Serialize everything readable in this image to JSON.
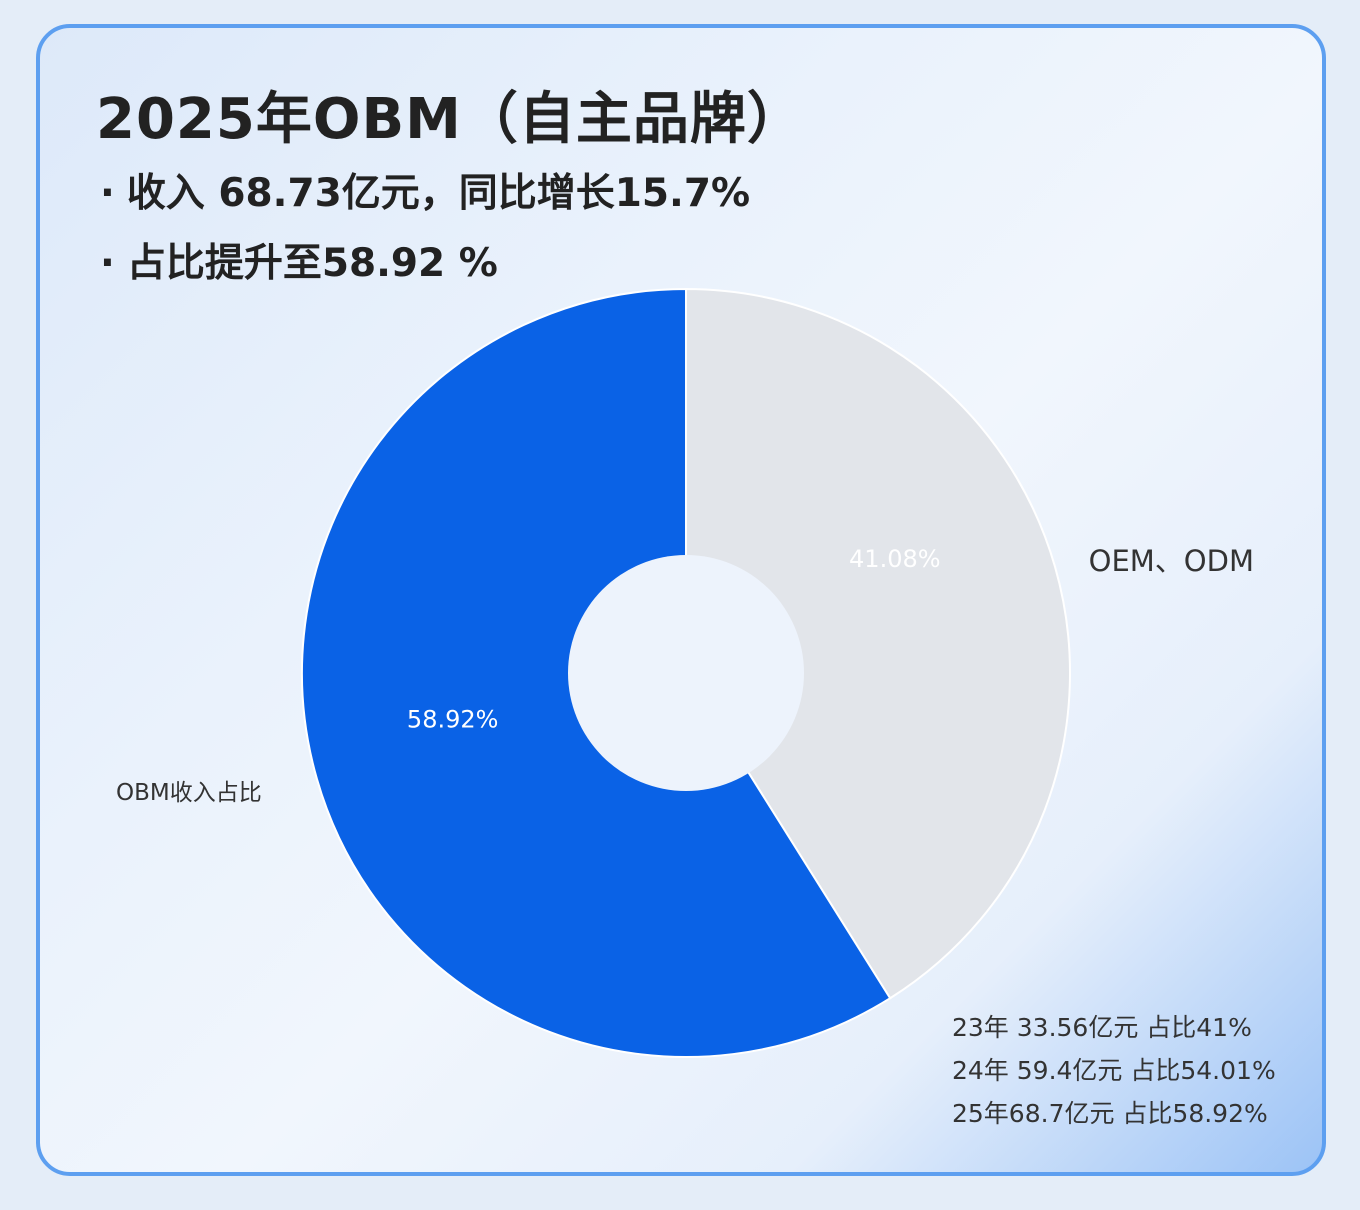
{
  "header": {
    "title": "2025年OBM（自主品牌）",
    "bullets": [
      {
        "dot": "·",
        "text": "收入 68.73亿元，同比增长15.7%"
      },
      {
        "dot": "·",
        "text": "占比提升至58.92 %"
      }
    ]
  },
  "chart_data": {
    "type": "pie",
    "title": "",
    "donut": true,
    "slices": [
      {
        "label": "OBM收入占比",
        "value": 58.92,
        "data_label": "58.92%",
        "color": "#0a62e6",
        "label_color": "#ffffff"
      },
      {
        "label": "OEM、ODM",
        "value": 41.08,
        "data_label": "41.08%",
        "color": "#e2e5ea",
        "label_color": "#ffffff"
      }
    ],
    "legend": "none"
  },
  "notes": [
    "23年 33.56亿元 占比41%",
    "24年 59.4亿元 占比54.01%",
    "25年68.7亿元 占比58.92%"
  ],
  "colors": {
    "border": "#5d9ff0",
    "text": "#222222"
  }
}
